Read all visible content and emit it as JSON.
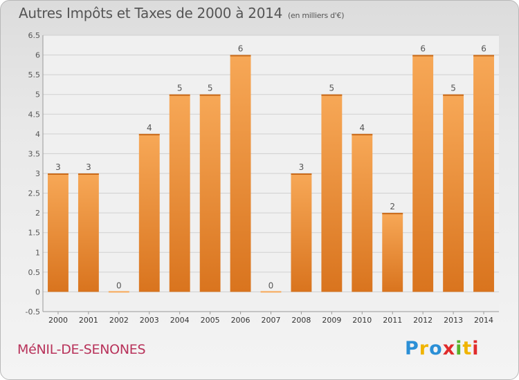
{
  "header": {
    "title": "Autres Impôts et Taxes de 2000 à 2014",
    "unit": "(en milliers d'€)"
  },
  "footer": {
    "location": "MéNIL-DE-SENONES",
    "logo_letters": [
      "P",
      "r",
      "o",
      "x",
      "i",
      "t",
      "i"
    ],
    "logo_colors": [
      "#2b8fd6",
      "#f0b400",
      "#2b8fd6",
      "#e02b2b",
      "#58b32b",
      "#f0b400",
      "#e02b2b"
    ]
  },
  "colors": {
    "bar_light": "#f7a857",
    "bar_dark": "#d9741e",
    "grid": "#cfcfcf",
    "plot_bg": "#f0f0f0"
  },
  "chart_data": {
    "type": "bar",
    "title": "Autres Impôts et Taxes de 2000 à 2014",
    "subtitle": "(en milliers d'€)",
    "xlabel": "",
    "ylabel": "",
    "categories": [
      "2000",
      "2001",
      "2002",
      "2003",
      "2004",
      "2005",
      "2006",
      "2007",
      "2008",
      "2009",
      "2010",
      "2011",
      "2012",
      "2013",
      "2014"
    ],
    "values": [
      3,
      3,
      0,
      4,
      5,
      5,
      6,
      0,
      3,
      5,
      4,
      2,
      6,
      5,
      6
    ],
    "data_labels": [
      "3",
      "3",
      "0",
      "4",
      "5",
      "5",
      "6",
      "0",
      "3",
      "5",
      "4",
      "2",
      "6",
      "5",
      "6"
    ],
    "yticks": [
      "-0.5",
      "0",
      "0.5",
      "1",
      "1.5",
      "2",
      "2.5",
      "3",
      "3.5",
      "4",
      "4.5",
      "5",
      "5.5",
      "6",
      "6.5"
    ],
    "ylim": [
      -0.5,
      6.5
    ],
    "grid": true
  }
}
